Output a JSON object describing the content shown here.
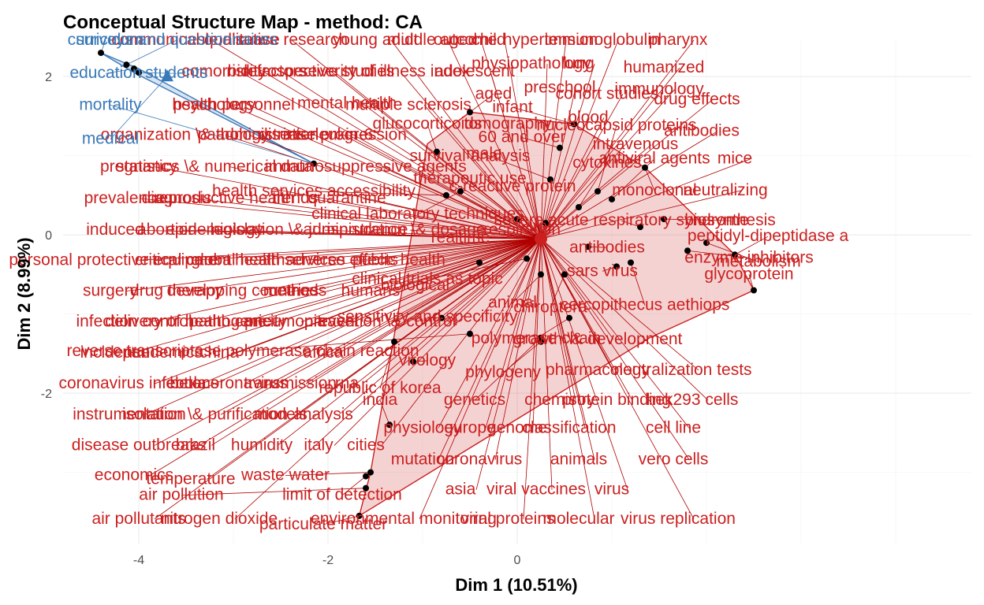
{
  "chart_data": {
    "type": "scatter",
    "title": "Conceptual Structure Map - method: CA",
    "xlabel": "Dim 1 (10.51%)",
    "ylabel": "Dim 2 (8.99%)",
    "xlim": [
      -4.8,
      4.8
    ],
    "ylim": [
      -3.9,
      2.45
    ],
    "xticks": [
      -4,
      -2,
      0
    ],
    "yticks": [
      -2,
      0,
      2
    ],
    "grid": true,
    "legend": "none",
    "colors": {
      "cluster1": "#cc1f1f",
      "cluster2": "#3a7ab8",
      "points": "#000000"
    },
    "clusters": [
      {
        "name": "1",
        "color": "#cc1f1f",
        "centroid": [
          0.25,
          -0.05
        ],
        "hull": [
          [
            -1.67,
            -3.55
          ],
          [
            -1.55,
            -3.0
          ],
          [
            -0.95,
            1.15
          ],
          [
            -0.5,
            1.55
          ],
          [
            0.6,
            1.4
          ],
          [
            1.35,
            0.85
          ],
          [
            2.3,
            -0.25
          ],
          [
            2.5,
            -0.7
          ],
          [
            1.4,
            -1.3
          ]
        ],
        "points": [
          {
            "x": -1.67,
            "y": -3.55,
            "label": "particulate matter",
            "lx": -2.05,
            "ly": -3.72
          },
          {
            "x": -1.6,
            "y": -3.2,
            "label": "air pollution",
            "lx": -3.55,
            "ly": -3.35
          },
          {
            "x": -1.55,
            "y": -3.0,
            "label": "waste water",
            "lx": -2.45,
            "ly": -3.1
          },
          {
            "x": -1.6,
            "y": -3.05,
            "label": "limit of detection",
            "lx": -1.85,
            "ly": -3.35
          },
          {
            "x": -1.35,
            "y": -2.4,
            "label": "india",
            "lx": -1.45,
            "ly": -2.15
          },
          {
            "x": -1.3,
            "y": -1.35,
            "label": "republic of korea",
            "lx": -1.45,
            "ly": -2.0
          },
          {
            "x": -1.1,
            "y": -1.6,
            "label": "virology",
            "lx": -0.95,
            "ly": -1.65
          },
          {
            "x": -0.8,
            "y": -1.05,
            "label": "sensitivity and specificity",
            "lx": -0.95,
            "ly": -1.1
          },
          {
            "x": -0.5,
            "y": -1.25,
            "label": "reverse transcriptase polymerase chain reaction",
            "lx": -2.9,
            "ly": -1.53
          },
          {
            "x": -0.4,
            "y": -0.35,
            "label": "biological",
            "lx": -1.08,
            "ly": -0.7
          },
          {
            "x": -0.6,
            "y": 0.55,
            "label": "clinical laboratory techniques",
            "lx": -1.05,
            "ly": 0.2
          },
          {
            "x": -0.75,
            "y": 0.5,
            "label": "health services accessibility",
            "lx": -2.15,
            "ly": 0.49
          },
          {
            "x": -0.85,
            "y": 1.05,
            "label": "glucocorticoids",
            "lx": -0.95,
            "ly": 1.34
          },
          {
            "x": -0.5,
            "y": 1.55,
            "label": "aged",
            "lx": -0.25,
            "ly": 1.72
          },
          {
            "x": 0.0,
            "y": 0.2,
            "label": "respiration",
            "lx": 0.05,
            "ly": 0.0
          },
          {
            "x": 0.1,
            "y": -0.3,
            "label": "clinical trials as topic",
            "lx": -0.95,
            "ly": -0.62
          },
          {
            "x": 0.25,
            "y": -0.5,
            "label": "animal",
            "lx": -0.05,
            "ly": -0.92
          },
          {
            "x": 0.25,
            "y": -1.3,
            "label": "genetics",
            "lx": -0.45,
            "ly": -2.15
          },
          {
            "x": 0.25,
            "y": -1.35,
            "label": "phylogeny",
            "lx": -0.15,
            "ly": -1.8
          },
          {
            "x": 0.3,
            "y": 0.15,
            "label": "viral",
            "lx": 0.2,
            "ly": 0.04
          },
          {
            "x": 0.35,
            "y": 0.7,
            "label": "male",
            "lx": -0.35,
            "ly": 0.96
          },
          {
            "x": 0.45,
            "y": 1.1,
            "label": "60 and over",
            "lx": 0.05,
            "ly": 1.17
          },
          {
            "x": 0.6,
            "y": 1.4,
            "label": "infant",
            "lx": -0.05,
            "ly": 1.55
          },
          {
            "x": 0.65,
            "y": 0.35,
            "label": "cytokines",
            "lx": 0.95,
            "ly": 0.85
          },
          {
            "x": 0.5,
            "y": -0.5,
            "label": "chiroptera",
            "lx": 0.35,
            "ly": -0.98
          },
          {
            "x": 0.55,
            "y": -1.05,
            "label": "polymerase chain",
            "lx": 0.2,
            "ly": -1.37
          },
          {
            "x": 0.75,
            "y": -0.15,
            "label": "antibodies",
            "lx": 0.95,
            "ly": -0.22
          },
          {
            "x": 0.85,
            "y": 0.55,
            "label": "nucleocapsid proteins",
            "lx": 1.05,
            "ly": 1.32
          },
          {
            "x": 1.0,
            "y": 0.45,
            "label": "antiviral agents",
            "lx": 1.45,
            "ly": 0.9
          },
          {
            "x": 1.05,
            "y": -0.4,
            "label": "sars virus",
            "lx": 0.9,
            "ly": -0.52
          },
          {
            "x": 1.2,
            "y": -0.35,
            "label": "cercopithecus aethiops",
            "lx": 1.35,
            "ly": -0.95
          },
          {
            "x": 1.3,
            "y": 0.1,
            "label": "severe acute respiratory syndrome",
            "lx": 1.1,
            "ly": 0.12
          },
          {
            "x": 1.35,
            "y": 0.85,
            "label": "monoclonal",
            "lx": 1.45,
            "ly": 0.5
          },
          {
            "x": 1.55,
            "y": 0.2,
            "label": "biosynthesis",
            "lx": 2.25,
            "ly": 0.12
          },
          {
            "x": 1.8,
            "y": -0.2,
            "label": "enzyme inhibitors",
            "lx": 2.45,
            "ly": -0.35
          },
          {
            "x": 2.0,
            "y": -0.1,
            "label": "metabolism",
            "lx": 2.55,
            "ly": -0.4
          },
          {
            "x": 2.3,
            "y": -0.25,
            "label": "peptidyl-dipeptidase a",
            "lx": 2.65,
            "ly": -0.08
          },
          {
            "x": 2.5,
            "y": -0.7,
            "label": "glycoprotein",
            "lx": 2.45,
            "ly": -0.56
          }
        ]
      },
      {
        "name": "2",
        "color": "#3a7ab8",
        "centroid": [
          -3.7,
          2.0
        ],
        "hull": [
          [
            -4.4,
            2.3
          ],
          [
            -4.0,
            2.1
          ],
          [
            -2.15,
            0.9
          ],
          [
            -4.05,
            2.05
          ]
        ],
        "points": [
          {
            "x": -4.4,
            "y": 2.3,
            "label": "curriculum",
            "lx": -4.35,
            "ly": 2.4
          },
          {
            "x": -4.13,
            "y": 2.15,
            "label": "surveys and questionnaires",
            "lx": -3.6,
            "ly": 2.4
          },
          {
            "x": -4.05,
            "y": 2.1,
            "label": "education",
            "lx": -4.35,
            "ly": 1.98
          },
          {
            "x": -4.0,
            "y": 2.05,
            "label": "students",
            "lx": -3.6,
            "ly": 1.98
          },
          {
            "x": -2.15,
            "y": 0.9,
            "label": "mortality",
            "lx": -4.3,
            "ly": 1.58
          },
          {
            "x": -3.7,
            "y": 2.0,
            "label": "medical",
            "lx": -4.3,
            "ly": 1.15
          }
        ]
      }
    ],
    "labels_only": [
      {
        "label": "communicable disease",
        "lx": -3.4,
        "ly": 2.4
      },
      {
        "label": "qualitative research",
        "lx": -2.55,
        "ly": 2.4
      },
      {
        "label": "young adult",
        "lx": -1.5,
        "ly": 2.4
      },
      {
        "label": "middle aged",
        "lx": -0.9,
        "ly": 2.4
      },
      {
        "label": "outcome",
        "lx": -0.55,
        "ly": 2.4
      },
      {
        "label": "child",
        "lx": -0.3,
        "ly": 2.4
      },
      {
        "label": "hypertension",
        "lx": 0.35,
        "ly": 2.4
      },
      {
        "label": "immunoglobulin",
        "lx": 0.9,
        "ly": 2.4
      },
      {
        "label": "pharynx",
        "lx": 1.7,
        "ly": 2.4
      },
      {
        "label": "physiopathology",
        "lx": 0.15,
        "ly": 2.1
      },
      {
        "label": "lung",
        "lx": 0.65,
        "ly": 2.1
      },
      {
        "label": "humanized",
        "lx": 1.55,
        "ly": 2.05
      },
      {
        "label": "comorbidity",
        "lx": -3.1,
        "ly": 2.0
      },
      {
        "label": "risk factors",
        "lx": -2.65,
        "ly": 2.0
      },
      {
        "label": "retrospective studies",
        "lx": -2.1,
        "ly": 2.0
      },
      {
        "label": "severity of illness index",
        "lx": -1.4,
        "ly": 2.0
      },
      {
        "label": "adolescent",
        "lx": -0.45,
        "ly": 2.0
      },
      {
        "label": "preschool",
        "lx": 0.45,
        "ly": 1.8
      },
      {
        "label": "cohort studies",
        "lx": 0.95,
        "ly": 1.72
      },
      {
        "label": "immunology",
        "lx": 1.5,
        "ly": 1.78
      },
      {
        "label": "drug effects",
        "lx": 1.9,
        "ly": 1.65
      },
      {
        "label": "blood",
        "lx": 0.75,
        "ly": 1.42
      },
      {
        "label": "intravenous",
        "lx": 1.25,
        "ly": 1.08
      },
      {
        "label": "antibodies",
        "lx": 1.95,
        "ly": 1.25
      },
      {
        "label": "mice",
        "lx": 2.3,
        "ly": 0.9
      },
      {
        "label": "neutralizing",
        "lx": 2.2,
        "ly": 0.5
      },
      {
        "label": "mental health",
        "lx": -1.8,
        "ly": 1.6
      },
      {
        "label": "psychology",
        "lx": -3.2,
        "ly": 1.58
      },
      {
        "label": "multiple sclerosis",
        "lx": -1.15,
        "ly": 1.58
      },
      {
        "label": "health personnel",
        "lx": -3.0,
        "ly": 1.58
      },
      {
        "label": "disease progression",
        "lx": -1.95,
        "ly": 1.2
      },
      {
        "label": "interleukin-6",
        "lx": -2.0,
        "ly": 1.2
      },
      {
        "label": "pathology",
        "lx": -3.0,
        "ly": 1.2
      },
      {
        "label": "tomography",
        "lx": -0.1,
        "ly": 1.34
      },
      {
        "label": "organization \\& administration",
        "lx": -3.25,
        "ly": 1.2
      },
      {
        "label": "pregnancy",
        "lx": -4.0,
        "ly": 0.8
      },
      {
        "label": "statistics \\& numerical data",
        "lx": -3.2,
        "ly": 0.8
      },
      {
        "label": "immunosuppressive agents",
        "lx": -1.6,
        "ly": 0.8
      },
      {
        "label": "survival analysis",
        "lx": -0.5,
        "ly": 0.93
      },
      {
        "label": "therapeutic use",
        "lx": -0.5,
        "ly": 0.65
      },
      {
        "label": "c-reactive protein",
        "lx": -0.05,
        "ly": 0.55
      },
      {
        "label": "prevalence",
        "lx": -4.15,
        "ly": 0.4
      },
      {
        "label": "diagnosis",
        "lx": -3.6,
        "ly": 0.4
      },
      {
        "label": "reproductive health",
        "lx": -3.1,
        "ly": 0.4
      },
      {
        "label": "trends",
        "lx": -2.35,
        "ly": 0.4
      },
      {
        "label": "quarantine",
        "lx": -1.8,
        "ly": 0.4
      },
      {
        "label": "induced",
        "lx": -4.25,
        "ly": 0.0
      },
      {
        "label": "abortion",
        "lx": -3.7,
        "ly": 0.0
      },
      {
        "label": "epidemiology",
        "lx": -3.2,
        "ly": 0.0
      },
      {
        "label": "legislation \\& jurisprudence",
        "lx": -2.2,
        "ly": 0.0
      },
      {
        "label": "administration \\& dosage",
        "lx": -1.3,
        "ly": 0.0
      },
      {
        "label": "realtime",
        "lx": -0.6,
        "ly": -0.1
      },
      {
        "label": "personal protective equipment",
        "lx": -4.2,
        "ly": -0.38
      },
      {
        "label": "critical care",
        "lx": -3.6,
        "ly": -0.38
      },
      {
        "label": "global health",
        "lx": -2.95,
        "ly": -0.38
      },
      {
        "label": "health services",
        "lx": -2.4,
        "ly": -0.38
      },
      {
        "label": "adverse effects",
        "lx": -1.85,
        "ly": -0.38
      },
      {
        "label": "public health",
        "lx": -1.25,
        "ly": -0.38
      },
      {
        "label": "surgery",
        "lx": -4.3,
        "ly": -0.77
      },
      {
        "label": "drug therapy",
        "lx": -3.6,
        "ly": -0.77
      },
      {
        "label": "developing countries",
        "lx": -2.9,
        "ly": -0.77
      },
      {
        "label": "methods",
        "lx": -2.35,
        "ly": -0.77
      },
      {
        "label": "humans",
        "lx": -1.55,
        "ly": -0.77
      },
      {
        "label": "infection control",
        "lx": -4.05,
        "ly": -1.16
      },
      {
        "label": "delivery of health care",
        "lx": -3.5,
        "ly": -1.16
      },
      {
        "label": "pathogenicity",
        "lx": -2.95,
        "ly": -1.16
      },
      {
        "label": "pneumonia",
        "lx": -2.45,
        "ly": -1.16
      },
      {
        "label": "travel",
        "lx": -1.9,
        "ly": -1.16
      },
      {
        "label": "prevention \\& control",
        "lx": -1.45,
        "ly": -1.16
      },
      {
        "label": "incidence",
        "lx": -4.25,
        "ly": -1.55
      },
      {
        "label": "pandemics",
        "lx": -3.75,
        "ly": -1.55
      },
      {
        "label": "china",
        "lx": -3.15,
        "ly": -1.55
      },
      {
        "label": "africa",
        "lx": -2.05,
        "ly": -1.55
      },
      {
        "label": "coronavirus infections",
        "lx": -4.0,
        "ly": -1.94
      },
      {
        "label": "ebola",
        "lx": -3.5,
        "ly": -1.94
      },
      {
        "label": "betacoronavirus",
        "lx": -3.05,
        "ly": -1.94
      },
      {
        "label": "transmission",
        "lx": -2.4,
        "ly": -1.94
      },
      {
        "label": "rna",
        "lx": -1.8,
        "ly": -1.94
      },
      {
        "label": "instrumentation",
        "lx": -4.1,
        "ly": -2.33
      },
      {
        "label": "isolation \\& purification",
        "lx": -3.3,
        "ly": -2.33
      },
      {
        "label": "models",
        "lx": -2.5,
        "ly": -2.33
      },
      {
        "label": "analysis",
        "lx": -2.05,
        "ly": -2.33
      },
      {
        "label": "disease outbreaks",
        "lx": -4.0,
        "ly": -2.72
      },
      {
        "label": "brazil",
        "lx": -3.4,
        "ly": -2.72
      },
      {
        "label": "humidity",
        "lx": -2.7,
        "ly": -2.72
      },
      {
        "label": "italy",
        "lx": -2.1,
        "ly": -2.72
      },
      {
        "label": "cities",
        "lx": -1.6,
        "ly": -2.72
      },
      {
        "label": "physiology",
        "lx": -1.0,
        "ly": -2.5
      },
      {
        "label": "europe",
        "lx": -0.5,
        "ly": -2.5
      },
      {
        "label": "genome",
        "lx": 0.0,
        "ly": -2.5
      },
      {
        "label": "classification",
        "lx": 0.55,
        "ly": -2.5
      },
      {
        "label": "economics",
        "lx": -4.05,
        "ly": -3.1
      },
      {
        "label": "temperature",
        "lx": -3.45,
        "ly": -3.15
      },
      {
        "label": "mutation",
        "lx": -1.0,
        "ly": -2.9
      },
      {
        "label": "coronavirus",
        "lx": -0.4,
        "ly": -2.9
      },
      {
        "label": "animals",
        "lx": 0.65,
        "ly": -2.9
      },
      {
        "label": "asia",
        "lx": -0.6,
        "ly": -3.28
      },
      {
        "label": "viral vaccines",
        "lx": 0.2,
        "ly": -3.28
      },
      {
        "label": "virus",
        "lx": 1.0,
        "ly": -3.28
      },
      {
        "label": "air pollutants",
        "lx": -4.0,
        "ly": -3.65
      },
      {
        "label": "nitrogen dioxide",
        "lx": -3.15,
        "ly": -3.65
      },
      {
        "label": "environmental monitoring",
        "lx": -1.2,
        "ly": -3.65
      },
      {
        "label": "viral proteins",
        "lx": -0.1,
        "ly": -3.65
      },
      {
        "label": "molecular",
        "lx": 0.65,
        "ly": -3.65
      },
      {
        "label": "virus replication",
        "lx": 1.7,
        "ly": -3.65
      },
      {
        "label": "growth \\& development",
        "lx": 0.85,
        "ly": -1.38
      },
      {
        "label": "pharmacology",
        "lx": 0.85,
        "ly": -1.77
      },
      {
        "label": "neutralization tests",
        "lx": 1.75,
        "ly": -1.77
      },
      {
        "label": "chemistry",
        "lx": 0.45,
        "ly": -2.15
      },
      {
        "label": "protein binding",
        "lx": 1.05,
        "ly": -2.15
      },
      {
        "label": "hek293 cells",
        "lx": 1.85,
        "ly": -2.15
      },
      {
        "label": "cell line",
        "lx": 1.65,
        "ly": -2.5
      },
      {
        "label": "vero cells",
        "lx": 1.65,
        "ly": -2.9
      }
    ]
  }
}
